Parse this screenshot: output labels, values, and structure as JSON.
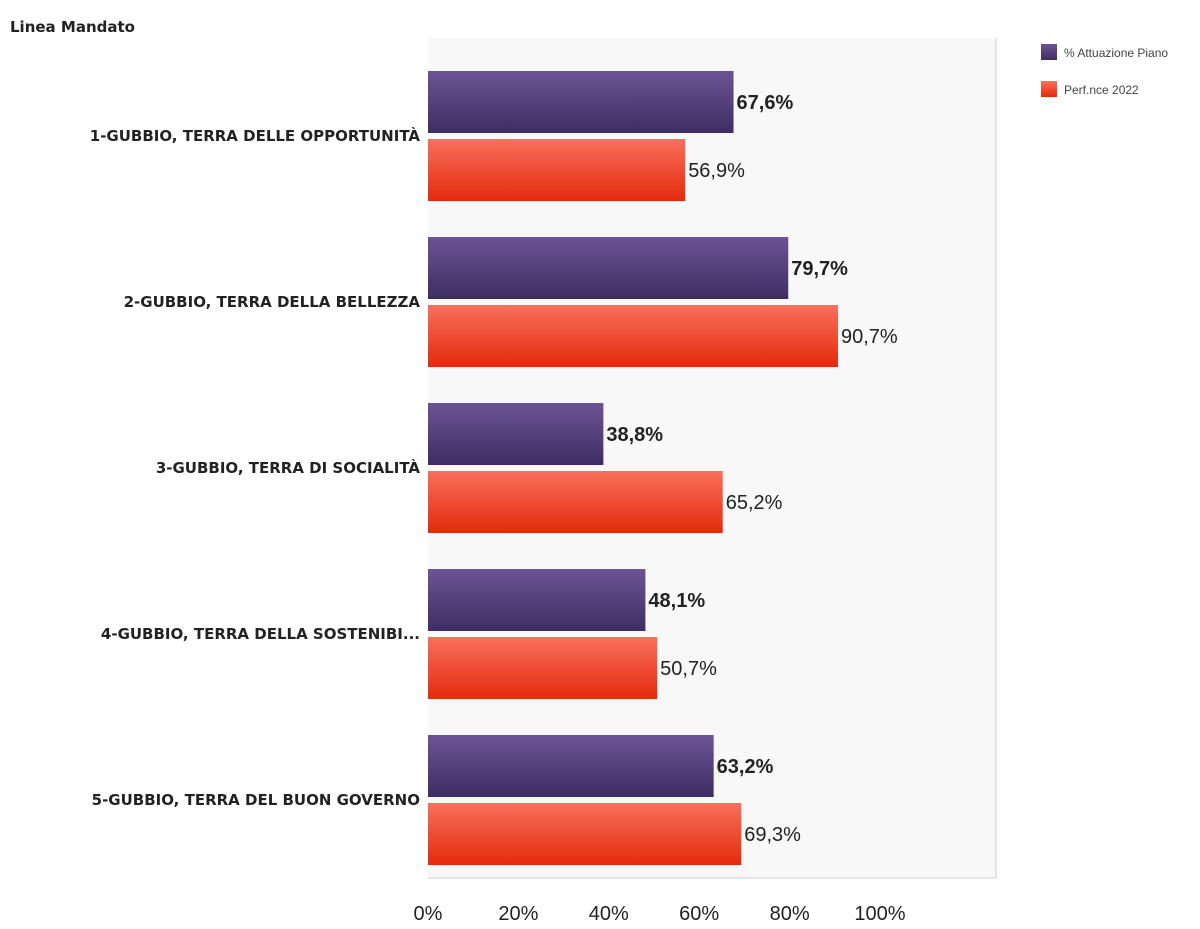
{
  "dimension_title": "Linea Mandato",
  "chart_data": {
    "type": "bar",
    "orientation": "horizontal",
    "categories": [
      "1-GUBBIO, TERRA DELLE OPPORTUNITÀ",
      "2-GUBBIO, TERRA DELLA BELLEZZA",
      "3-GUBBIO, TERRA DI SOCIALITÀ",
      "4-GUBBIO, TERRA DELLA SOSTENIBI...",
      "5-GUBBIO, TERRA DEL BUON GOVERNO"
    ],
    "series": [
      {
        "name": "% Attuazione Piano",
        "values": [
          67.6,
          79.7,
          38.8,
          48.1,
          63.2
        ],
        "labels": [
          "67,6%",
          "79,7%",
          "38,8%",
          "48,1%",
          "63,2%"
        ],
        "color_top": "#6c5494",
        "color_bottom": "#3e2d64",
        "label_bold": true
      },
      {
        "name": "Perf.nce 2022",
        "values": [
          56.9,
          90.7,
          65.2,
          50.7,
          69.3
        ],
        "labels": [
          "56,9%",
          "90,7%",
          "65,2%",
          "50,7%",
          "69,3%"
        ],
        "color_top": "#f8705c",
        "color_bottom": "#e42a0c",
        "label_bold": false
      }
    ],
    "xlim": [
      0,
      100
    ],
    "xticks": [
      0,
      20,
      40,
      60,
      80,
      100
    ],
    "xtick_labels": [
      "0%",
      "20%",
      "40%",
      "60%",
      "80%",
      "100%"
    ],
    "legend_position": "top-right",
    "plot_background": "#f8f8f8"
  }
}
